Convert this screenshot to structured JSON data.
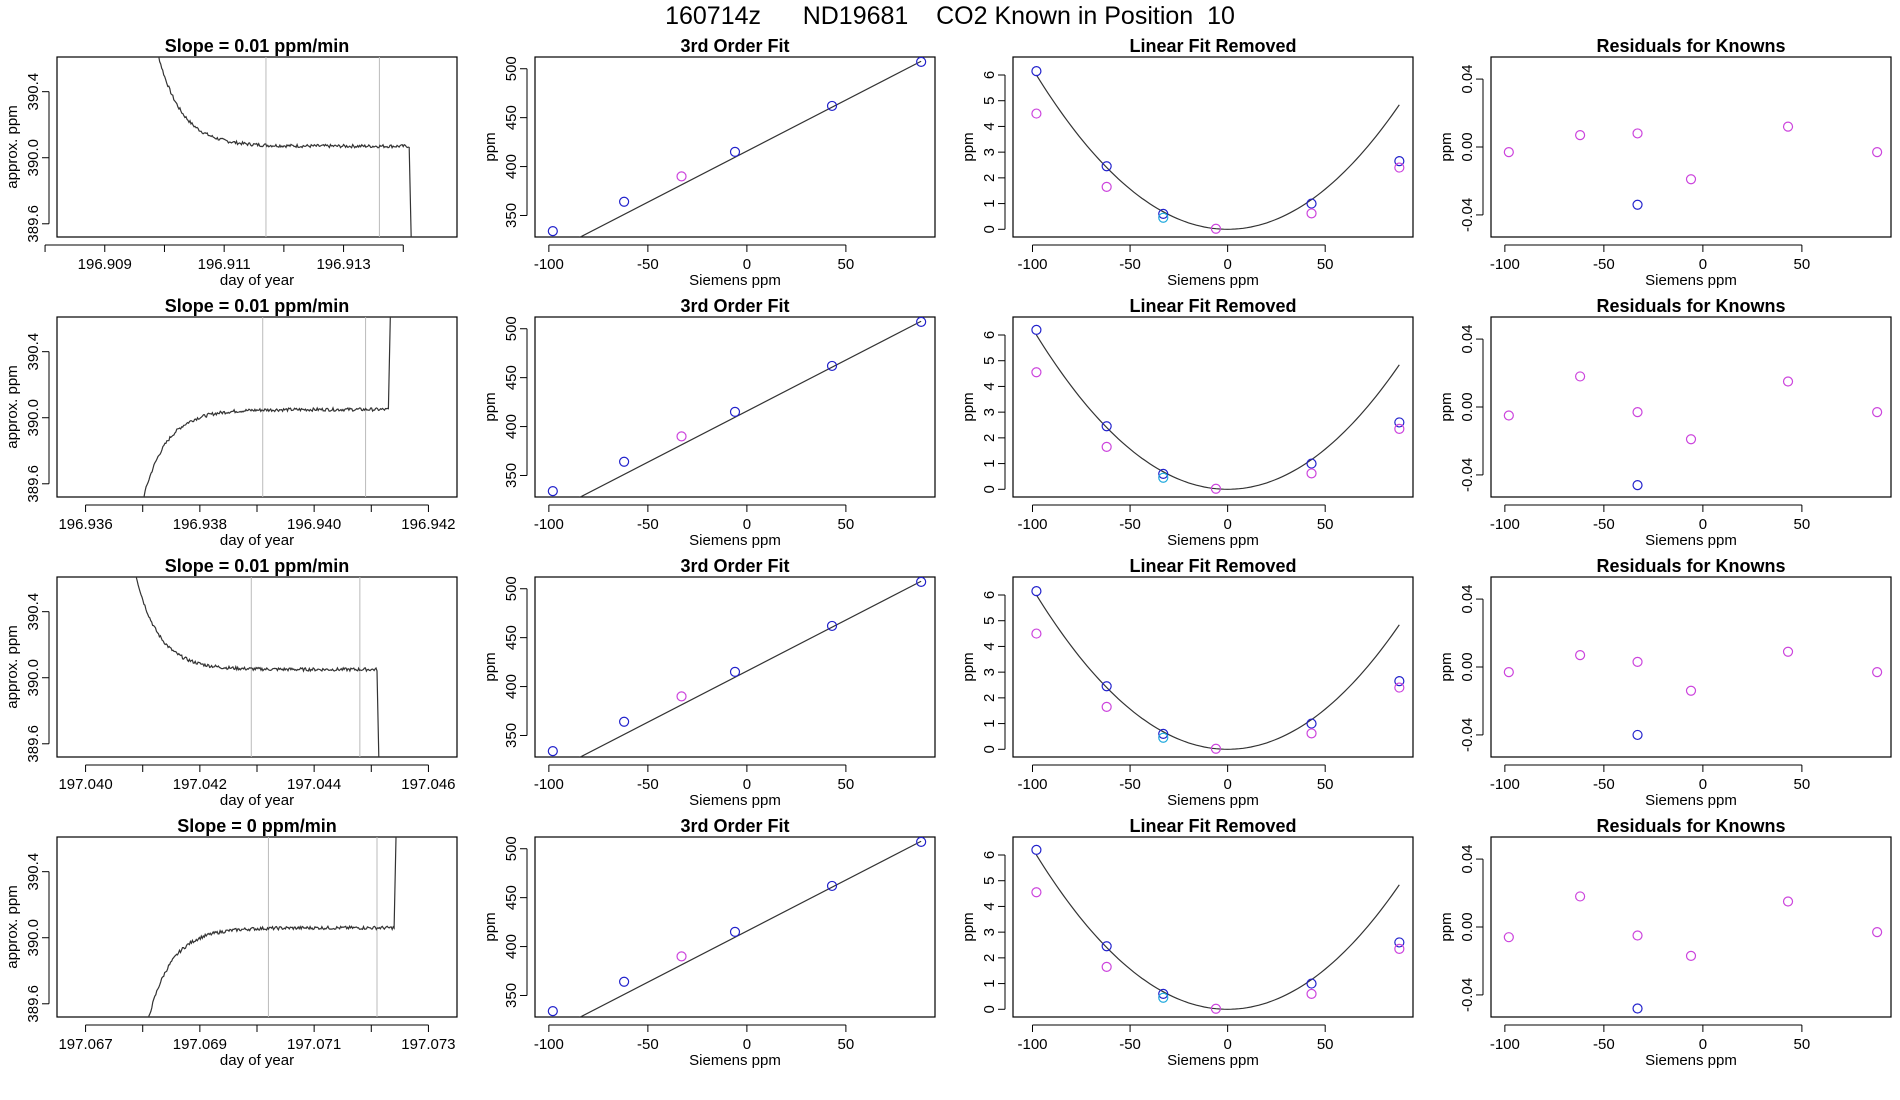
{
  "page": {
    "title": "160714z      ND19681    CO2 Known in Position  10"
  },
  "colors": {
    "line": "#333333",
    "point_blue": "#2222cc",
    "point_magenta": "#cc44dd",
    "point_cyan": "#22aadd",
    "window_line": "#bbbbbb",
    "frame": "#000000"
  },
  "chart_data": [
    {
      "type": "line",
      "row": 1,
      "title": "Slope =  0.01  ppm/min",
      "xlabel": "day of year",
      "ylabel": "approx. ppm",
      "xlim": [
        196.9082,
        196.9149
      ],
      "ylim": [
        389.52,
        390.61
      ],
      "xticks": [
        196.908,
        196.909,
        196.91,
        196.911,
        196.912,
        196.913,
        196.914
      ],
      "xtick_labels": [
        "",
        "196.909",
        "",
        "196.911",
        "",
        "196.913",
        ""
      ],
      "yticks": [
        389.6,
        390.0,
        390.4
      ],
      "ytick_labels": [
        "389.6",
        "390.0",
        "390.4"
      ],
      "window": [
        196.9117,
        196.9136
      ],
      "trace": "drop",
      "x_start": 196.9097,
      "x_end": 196.9141,
      "plateau": 390.07
    },
    {
      "type": "scatter",
      "row": 1,
      "title": "3rd Order Fit",
      "xlabel": "Siemens ppm",
      "ylabel": "ppm",
      "xlim": [
        -107,
        95
      ],
      "ylim": [
        328,
        512
      ],
      "xticks": [
        -100,
        -50,
        0,
        50
      ],
      "xtick_labels": [
        "-100",
        "-50",
        "0",
        "50"
      ],
      "yticks": [
        350,
        400,
        450,
        500
      ],
      "ytick_labels": [
        "350",
        "400",
        "450",
        "500"
      ],
      "fit": "linear",
      "fit_coef": [
        415.8,
        1.044
      ],
      "points": [
        {
          "x": -98,
          "y": 334,
          "c": "b"
        },
        {
          "x": -62,
          "y": 364,
          "c": "b"
        },
        {
          "x": -33,
          "y": 390,
          "c": "m"
        },
        {
          "x": -6,
          "y": 415,
          "c": "b"
        },
        {
          "x": 43,
          "y": 462,
          "c": "b"
        },
        {
          "x": 88,
          "y": 507,
          "c": "b"
        }
      ]
    },
    {
      "type": "scatter",
      "row": 1,
      "title": "Linear Fit Removed",
      "xlabel": "Siemens ppm",
      "ylabel": "ppm",
      "xlim": [
        -110,
        95
      ],
      "ylim": [
        -0.3,
        6.7
      ],
      "xticks": [
        -100,
        -50,
        0,
        50
      ],
      "xtick_labels": [
        "-100",
        "-50",
        "0",
        "50"
      ],
      "yticks": [
        0,
        1,
        2,
        3,
        4,
        5,
        6
      ],
      "ytick_labels": [
        "0",
        "1",
        "2",
        "3",
        "4",
        "5",
        "6"
      ],
      "fit": "quadratic",
      "fit_coef": [
        0,
        0,
        0.000625
      ],
      "points": [
        {
          "x": -98,
          "y": 6.15,
          "c": "b"
        },
        {
          "x": -98,
          "y": 4.5,
          "c": "m"
        },
        {
          "x": -62,
          "y": 2.45,
          "c": "b"
        },
        {
          "x": -62,
          "y": 1.65,
          "c": "m"
        },
        {
          "x": -33,
          "y": 0.6,
          "c": "b"
        },
        {
          "x": -33,
          "y": 0.45,
          "c": "c"
        },
        {
          "x": -6,
          "y": 0.02,
          "c": "m"
        },
        {
          "x": 43,
          "y": 1.0,
          "c": "b"
        },
        {
          "x": 43,
          "y": 0.62,
          "c": "m"
        },
        {
          "x": 88,
          "y": 2.65,
          "c": "b"
        },
        {
          "x": 88,
          "y": 2.4,
          "c": "m"
        }
      ]
    },
    {
      "type": "scatter",
      "row": 1,
      "title": "Residuals for Knowns",
      "xlabel": "Siemens ppm",
      "ylabel": "ppm",
      "xlim": [
        -107,
        95
      ],
      "ylim": [
        -0.053,
        0.053
      ],
      "xticks": [
        -100,
        -50,
        0,
        50
      ],
      "xtick_labels": [
        "-100",
        "-50",
        "0",
        "50"
      ],
      "yticks": [
        -0.04,
        0,
        0.04
      ],
      "ytick_labels": [
        "-0.04",
        "0.00",
        "0.04"
      ],
      "points": [
        {
          "x": -98,
          "y": -0.003,
          "c": "m"
        },
        {
          "x": -62,
          "y": 0.007,
          "c": "m"
        },
        {
          "x": -33,
          "y": 0.008,
          "c": "m"
        },
        {
          "x": -33,
          "y": -0.034,
          "c": "b"
        },
        {
          "x": -6,
          "y": -0.019,
          "c": "m"
        },
        {
          "x": 43,
          "y": 0.012,
          "c": "m"
        },
        {
          "x": 88,
          "y": -0.003,
          "c": "m"
        }
      ]
    },
    {
      "type": "line",
      "row": 2,
      "title": "Slope =  0.01  ppm/min",
      "xlabel": "day of year",
      "ylabel": "approx. ppm",
      "xlim": [
        196.9355,
        196.9425
      ],
      "ylim": [
        389.52,
        390.61
      ],
      "xticks": [
        196.936,
        196.937,
        196.938,
        196.939,
        196.94,
        196.941,
        196.942
      ],
      "xtick_labels": [
        "196.936",
        "",
        "196.938",
        "",
        "196.940",
        "",
        "196.942"
      ],
      "yticks": [
        389.6,
        390.0,
        390.4
      ],
      "ytick_labels": [
        "389.6",
        "390.0",
        "390.4"
      ],
      "window": [
        196.9391,
        196.9409
      ],
      "trace": "rise",
      "x_start": 196.9368,
      "x_end": 196.9413,
      "plateau": 390.05
    },
    {
      "type": "scatter",
      "row": 2,
      "title": "3rd Order Fit",
      "xlabel": "Siemens ppm",
      "ylabel": "ppm",
      "xlim": [
        -107,
        95
      ],
      "ylim": [
        328,
        512
      ],
      "xticks": [
        -100,
        -50,
        0,
        50
      ],
      "xtick_labels": [
        "-100",
        "-50",
        "0",
        "50"
      ],
      "yticks": [
        350,
        400,
        450,
        500
      ],
      "ytick_labels": [
        "350",
        "400",
        "450",
        "500"
      ],
      "fit": "linear",
      "fit_coef": [
        415.8,
        1.044
      ],
      "points": [
        {
          "x": -98,
          "y": 334,
          "c": "b"
        },
        {
          "x": -62,
          "y": 364,
          "c": "b"
        },
        {
          "x": -33,
          "y": 390,
          "c": "m"
        },
        {
          "x": -6,
          "y": 415,
          "c": "b"
        },
        {
          "x": 43,
          "y": 462,
          "c": "b"
        },
        {
          "x": 88,
          "y": 507,
          "c": "b"
        }
      ]
    },
    {
      "type": "scatter",
      "row": 2,
      "title": "Linear Fit Removed",
      "xlabel": "Siemens ppm",
      "ylabel": "ppm",
      "xlim": [
        -110,
        95
      ],
      "ylim": [
        -0.3,
        6.7
      ],
      "xticks": [
        -100,
        -50,
        0,
        50
      ],
      "xtick_labels": [
        "-100",
        "-50",
        "0",
        "50"
      ],
      "yticks": [
        0,
        1,
        2,
        3,
        4,
        5,
        6
      ],
      "ytick_labels": [
        "0",
        "1",
        "2",
        "3",
        "4",
        "5",
        "6"
      ],
      "fit": "quadratic",
      "fit_coef": [
        0,
        0,
        0.000625
      ],
      "points": [
        {
          "x": -98,
          "y": 6.2,
          "c": "b"
        },
        {
          "x": -98,
          "y": 4.55,
          "c": "m"
        },
        {
          "x": -62,
          "y": 2.45,
          "c": "b"
        },
        {
          "x": -62,
          "y": 1.65,
          "c": "m"
        },
        {
          "x": -33,
          "y": 0.6,
          "c": "b"
        },
        {
          "x": -33,
          "y": 0.45,
          "c": "c"
        },
        {
          "x": -6,
          "y": 0.02,
          "c": "m"
        },
        {
          "x": 43,
          "y": 1.0,
          "c": "b"
        },
        {
          "x": 43,
          "y": 0.62,
          "c": "m"
        },
        {
          "x": 88,
          "y": 2.6,
          "c": "b"
        },
        {
          "x": 88,
          "y": 2.35,
          "c": "m"
        }
      ]
    },
    {
      "type": "scatter",
      "row": 2,
      "title": "Residuals for Knowns",
      "xlabel": "Siemens ppm",
      "ylabel": "ppm",
      "xlim": [
        -107,
        95
      ],
      "ylim": [
        -0.053,
        0.053
      ],
      "xticks": [
        -100,
        -50,
        0,
        50
      ],
      "xtick_labels": [
        "-100",
        "-50",
        "0",
        "50"
      ],
      "yticks": [
        -0.04,
        0,
        0.04
      ],
      "ytick_labels": [
        "-0.04",
        "0.00",
        "0.04"
      ],
      "points": [
        {
          "x": -98,
          "y": -0.005,
          "c": "m"
        },
        {
          "x": -62,
          "y": 0.018,
          "c": "m"
        },
        {
          "x": -33,
          "y": -0.003,
          "c": "m"
        },
        {
          "x": -33,
          "y": -0.046,
          "c": "b"
        },
        {
          "x": -6,
          "y": -0.019,
          "c": "m"
        },
        {
          "x": 43,
          "y": 0.015,
          "c": "m"
        },
        {
          "x": 88,
          "y": -0.003,
          "c": "m"
        }
      ]
    },
    {
      "type": "line",
      "row": 3,
      "title": "Slope =  0.01  ppm/min",
      "xlabel": "day of year",
      "ylabel": "approx. ppm",
      "xlim": [
        197.0395,
        197.0465
      ],
      "ylim": [
        389.52,
        390.61
      ],
      "xticks": [
        197.04,
        197.041,
        197.042,
        197.043,
        197.044,
        197.045,
        197.046
      ],
      "xtick_labels": [
        "197.040",
        "",
        "197.042",
        "",
        "197.044",
        "",
        "197.046"
      ],
      "yticks": [
        389.6,
        390.0,
        390.4
      ],
      "ytick_labels": [
        "389.6",
        "390.0",
        "390.4"
      ],
      "window": [
        197.0429,
        197.0448
      ],
      "trace": "drop",
      "x_start": 197.0407,
      "x_end": 197.0451,
      "plateau": 390.05
    },
    {
      "type": "scatter",
      "row": 3,
      "title": "3rd Order Fit",
      "xlabel": "Siemens ppm",
      "ylabel": "ppm",
      "xlim": [
        -107,
        95
      ],
      "ylim": [
        328,
        512
      ],
      "xticks": [
        -100,
        -50,
        0,
        50
      ],
      "xtick_labels": [
        "-100",
        "-50",
        "0",
        "50"
      ],
      "yticks": [
        350,
        400,
        450,
        500
      ],
      "ytick_labels": [
        "350",
        "400",
        "450",
        "500"
      ],
      "fit": "linear",
      "fit_coef": [
        415.8,
        1.044
      ],
      "points": [
        {
          "x": -98,
          "y": 334,
          "c": "b"
        },
        {
          "x": -62,
          "y": 364,
          "c": "b"
        },
        {
          "x": -33,
          "y": 390,
          "c": "m"
        },
        {
          "x": -6,
          "y": 415,
          "c": "b"
        },
        {
          "x": 43,
          "y": 462,
          "c": "b"
        },
        {
          "x": 88,
          "y": 507,
          "c": "b"
        }
      ]
    },
    {
      "type": "scatter",
      "row": 3,
      "title": "Linear Fit Removed",
      "xlabel": "Siemens ppm",
      "ylabel": "ppm",
      "xlim": [
        -110,
        95
      ],
      "ylim": [
        -0.3,
        6.7
      ],
      "xticks": [
        -100,
        -50,
        0,
        50
      ],
      "xtick_labels": [
        "-100",
        "-50",
        "0",
        "50"
      ],
      "yticks": [
        0,
        1,
        2,
        3,
        4,
        5,
        6
      ],
      "ytick_labels": [
        "0",
        "1",
        "2",
        "3",
        "4",
        "5",
        "6"
      ],
      "fit": "quadratic",
      "fit_coef": [
        0,
        0,
        0.000625
      ],
      "points": [
        {
          "x": -98,
          "y": 6.15,
          "c": "b"
        },
        {
          "x": -98,
          "y": 4.5,
          "c": "m"
        },
        {
          "x": -62,
          "y": 2.45,
          "c": "b"
        },
        {
          "x": -62,
          "y": 1.65,
          "c": "m"
        },
        {
          "x": -33,
          "y": 0.6,
          "c": "b"
        },
        {
          "x": -33,
          "y": 0.45,
          "c": "c"
        },
        {
          "x": -6,
          "y": 0.02,
          "c": "m"
        },
        {
          "x": 43,
          "y": 1.0,
          "c": "b"
        },
        {
          "x": 43,
          "y": 0.62,
          "c": "m"
        },
        {
          "x": 88,
          "y": 2.65,
          "c": "b"
        },
        {
          "x": 88,
          "y": 2.4,
          "c": "m"
        }
      ]
    },
    {
      "type": "scatter",
      "row": 3,
      "title": "Residuals for Knowns",
      "xlabel": "Siemens ppm",
      "ylabel": "ppm",
      "xlim": [
        -107,
        95
      ],
      "ylim": [
        -0.053,
        0.053
      ],
      "xticks": [
        -100,
        -50,
        0,
        50
      ],
      "xtick_labels": [
        "-100",
        "-50",
        "0",
        "50"
      ],
      "yticks": [
        -0.04,
        0,
        0.04
      ],
      "ytick_labels": [
        "-0.04",
        "0.00",
        "0.04"
      ],
      "points": [
        {
          "x": -98,
          "y": -0.003,
          "c": "m"
        },
        {
          "x": -62,
          "y": 0.007,
          "c": "m"
        },
        {
          "x": -33,
          "y": 0.003,
          "c": "m"
        },
        {
          "x": -33,
          "y": -0.04,
          "c": "b"
        },
        {
          "x": -6,
          "y": -0.014,
          "c": "m"
        },
        {
          "x": 43,
          "y": 0.009,
          "c": "m"
        },
        {
          "x": 88,
          "y": -0.003,
          "c": "m"
        }
      ]
    },
    {
      "type": "line",
      "row": 4,
      "title": "Slope =  0  ppm/min",
      "xlabel": "day of year",
      "ylabel": "approx. ppm",
      "xlim": [
        197.0665,
        197.0735
      ],
      "ylim": [
        389.52,
        390.61
      ],
      "xticks": [
        197.067,
        197.068,
        197.069,
        197.07,
        197.071,
        197.072,
        197.073
      ],
      "xtick_labels": [
        "197.067",
        "",
        "197.069",
        "",
        "197.071",
        "",
        "197.073"
      ],
      "yticks": [
        389.6,
        390.0,
        390.4
      ],
      "ytick_labels": [
        "389.6",
        "390.0",
        "390.4"
      ],
      "window": [
        197.0702,
        197.0721
      ],
      "trace": "rise",
      "x_start": 197.0679,
      "x_end": 197.0724,
      "plateau": 390.06
    },
    {
      "type": "scatter",
      "row": 4,
      "title": "3rd Order Fit",
      "xlabel": "Siemens ppm",
      "ylabel": "ppm",
      "xlim": [
        -107,
        95
      ],
      "ylim": [
        328,
        512
      ],
      "xticks": [
        -100,
        -50,
        0,
        50
      ],
      "xtick_labels": [
        "-100",
        "-50",
        "0",
        "50"
      ],
      "yticks": [
        350,
        400,
        450,
        500
      ],
      "ytick_labels": [
        "350",
        "400",
        "450",
        "500"
      ],
      "fit": "linear",
      "fit_coef": [
        415.8,
        1.044
      ],
      "points": [
        {
          "x": -98,
          "y": 334,
          "c": "b"
        },
        {
          "x": -62,
          "y": 364,
          "c": "b"
        },
        {
          "x": -33,
          "y": 390,
          "c": "m"
        },
        {
          "x": -6,
          "y": 415,
          "c": "b"
        },
        {
          "x": 43,
          "y": 462,
          "c": "b"
        },
        {
          "x": 88,
          "y": 507,
          "c": "b"
        }
      ]
    },
    {
      "type": "scatter",
      "row": 4,
      "title": "Linear Fit Removed",
      "xlabel": "Siemens ppm",
      "ylabel": "ppm",
      "xlim": [
        -110,
        95
      ],
      "ylim": [
        -0.3,
        6.7
      ],
      "xticks": [
        -100,
        -50,
        0,
        50
      ],
      "xtick_labels": [
        "-100",
        "-50",
        "0",
        "50"
      ],
      "yticks": [
        0,
        1,
        2,
        3,
        4,
        5,
        6
      ],
      "ytick_labels": [
        "0",
        "1",
        "2",
        "3",
        "4",
        "5",
        "6"
      ],
      "fit": "quadratic",
      "fit_coef": [
        0,
        0,
        0.000625
      ],
      "points": [
        {
          "x": -98,
          "y": 6.2,
          "c": "b"
        },
        {
          "x": -98,
          "y": 4.55,
          "c": "m"
        },
        {
          "x": -62,
          "y": 2.45,
          "c": "b"
        },
        {
          "x": -62,
          "y": 1.65,
          "c": "m"
        },
        {
          "x": -33,
          "y": 0.6,
          "c": "b"
        },
        {
          "x": -33,
          "y": 0.45,
          "c": "c"
        },
        {
          "x": -6,
          "y": 0.02,
          "c": "m"
        },
        {
          "x": 43,
          "y": 1.0,
          "c": "b"
        },
        {
          "x": 43,
          "y": 0.6,
          "c": "m"
        },
        {
          "x": 88,
          "y": 2.6,
          "c": "b"
        },
        {
          "x": 88,
          "y": 2.35,
          "c": "m"
        }
      ]
    },
    {
      "type": "scatter",
      "row": 4,
      "title": "Residuals for Knowns",
      "xlabel": "Siemens ppm",
      "ylabel": "ppm",
      "xlim": [
        -107,
        95
      ],
      "ylim": [
        -0.053,
        0.053
      ],
      "xticks": [
        -100,
        -50,
        0,
        50
      ],
      "xtick_labels": [
        "-100",
        "-50",
        "0",
        "50"
      ],
      "yticks": [
        -0.04,
        0,
        0.04
      ],
      "ytick_labels": [
        "-0.04",
        "0.00",
        "0.04"
      ],
      "points": [
        {
          "x": -98,
          "y": -0.006,
          "c": "m"
        },
        {
          "x": -62,
          "y": 0.018,
          "c": "m"
        },
        {
          "x": -33,
          "y": -0.005,
          "c": "m"
        },
        {
          "x": -33,
          "y": -0.048,
          "c": "b"
        },
        {
          "x": -6,
          "y": -0.017,
          "c": "m"
        },
        {
          "x": 43,
          "y": 0.015,
          "c": "m"
        },
        {
          "x": 88,
          "y": -0.003,
          "c": "m"
        }
      ]
    }
  ]
}
